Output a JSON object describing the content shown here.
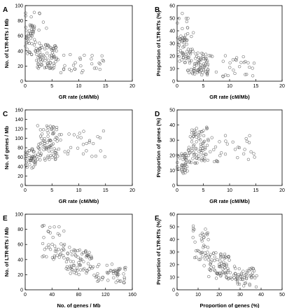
{
  "chart_data": [
    {
      "panel": "A",
      "type": "scatter",
      "xlabel": "GR rate (cM/Mb)",
      "ylabel": "No. of LTR-RTs / Mb",
      "xlim": [
        0,
        20
      ],
      "ylim": [
        0,
        100
      ],
      "xticks": [
        0,
        5,
        10,
        15,
        20
      ],
      "yticks": [
        0,
        20,
        40,
        60,
        80,
        100
      ],
      "series": [
        {
          "cloud": [
            {
              "x_range": [
                0,
                2
              ],
              "y_range": [
                35,
                75
              ],
              "n": 40,
              "y_trend": -2
            },
            {
              "x_range": [
                2,
                6
              ],
              "y_range": [
                15,
                50
              ],
              "n": 80,
              "y_trend": -3
            },
            {
              "x_range": [
                6,
                15
              ],
              "y_range": [
                10,
                35
              ],
              "n": 30,
              "y_trend": -0.8
            },
            {
              "x_range": [
                0,
                4
              ],
              "y_range": [
                65,
                92
              ],
              "n": 14,
              "y_trend": 0
            }
          ]
        }
      ]
    },
    {
      "panel": "B",
      "type": "scatter",
      "xlabel": "GR rate (cM/Mb)",
      "ylabel": "Proportion of LTR-RTs (%)",
      "xlim": [
        0,
        20
      ],
      "ylim": [
        0,
        60
      ],
      "xticks": [
        0,
        5,
        10,
        15,
        20
      ],
      "yticks": [
        0,
        10,
        20,
        30,
        40,
        50,
        60
      ],
      "series": [
        {
          "cloud": [
            {
              "x_range": [
                0,
                2
              ],
              "y_range": [
                15,
                35
              ],
              "n": 40,
              "y_trend": -1.5
            },
            {
              "x_range": [
                2,
                6
              ],
              "y_range": [
                5,
                25
              ],
              "n": 80,
              "y_trend": -1.5
            },
            {
              "x_range": [
                6,
                15
              ],
              "y_range": [
                3,
                20
              ],
              "n": 30,
              "y_trend": -0.6
            },
            {
              "x_range": [
                0,
                4
              ],
              "y_range": [
                35,
                55
              ],
              "n": 14,
              "y_trend": 0
            }
          ]
        }
      ]
    },
    {
      "panel": "C",
      "type": "scatter",
      "xlabel": "GR rate (cM/Mb)",
      "ylabel": "No. of genes / Mb",
      "xlim": [
        0,
        20
      ],
      "ylim": [
        0,
        160
      ],
      "xticks": [
        0,
        5,
        10,
        15,
        20
      ],
      "yticks": [
        0,
        20,
        40,
        60,
        80,
        100,
        120,
        140,
        160
      ],
      "series": [
        {
          "cloud": [
            {
              "x_range": [
                0,
                2
              ],
              "y_range": [
                35,
                80
              ],
              "n": 40,
              "y_trend": 5
            },
            {
              "x_range": [
                2,
                6
              ],
              "y_range": [
                50,
                130
              ],
              "n": 80,
              "y_trend": 4
            },
            {
              "x_range": [
                6,
                15
              ],
              "y_range": [
                60,
                115
              ],
              "n": 30,
              "y_trend": 0.5
            }
          ]
        }
      ]
    },
    {
      "panel": "D",
      "type": "scatter",
      "xlabel": "GR rate (cM/Mb)",
      "ylabel": "Proportion of genes (%)",
      "xlim": [
        0,
        20
      ],
      "ylim": [
        0,
        50
      ],
      "xticks": [
        0,
        5,
        10,
        15,
        20
      ],
      "yticks": [
        0,
        10,
        20,
        30,
        40,
        50
      ],
      "series": [
        {
          "cloud": [
            {
              "x_range": [
                0,
                2
              ],
              "y_range": [
                8,
                22
              ],
              "n": 40,
              "y_trend": 1.5
            },
            {
              "x_range": [
                2,
                6
              ],
              "y_range": [
                15,
                38
              ],
              "n": 80,
              "y_trend": 1.5
            },
            {
              "x_range": [
                6,
                15
              ],
              "y_range": [
                15,
                33
              ],
              "n": 30,
              "y_trend": 0
            }
          ]
        }
      ]
    },
    {
      "panel": "E",
      "type": "scatter",
      "xlabel": "No. of genes / Mb",
      "ylabel": "No. of LTR-RTs / Mb",
      "xlim": [
        0,
        160
      ],
      "ylim": [
        0,
        100
      ],
      "xticks": [
        0,
        40,
        80,
        120,
        160
      ],
      "yticks": [
        0,
        20,
        40,
        60,
        80,
        100
      ],
      "series": [
        {
          "cloud": [
            {
              "x_range": [
                25,
                60
              ],
              "y_range": [
                40,
                85
              ],
              "n": 45,
              "y_trend": -0.5
            },
            {
              "x_range": [
                60,
                100
              ],
              "y_range": [
                20,
                55
              ],
              "n": 70,
              "y_trend": -0.4
            },
            {
              "x_range": [
                100,
                150
              ],
              "y_range": [
                10,
                35
              ],
              "n": 50,
              "y_trend": -0.2
            }
          ]
        }
      ]
    },
    {
      "panel": "F",
      "type": "scatter",
      "xlabel": "Proportion of genes (%)",
      "ylabel": "Proportion of LTR-RTs (%)",
      "xlim": [
        0,
        50
      ],
      "ylim": [
        0,
        60
      ],
      "xticks": [
        0,
        10,
        20,
        30,
        40,
        50
      ],
      "yticks": [
        0,
        10,
        20,
        30,
        40,
        50,
        60
      ],
      "series": [
        {
          "cloud": [
            {
              "x_range": [
                7,
                15
              ],
              "y_range": [
                20,
                50
              ],
              "n": 40,
              "y_trend": -1.5
            },
            {
              "x_range": [
                15,
                25
              ],
              "y_range": [
                8,
                30
              ],
              "n": 70,
              "y_trend": -1.2
            },
            {
              "x_range": [
                25,
                38
              ],
              "y_range": [
                3,
                18
              ],
              "n": 55,
              "y_trend": -0.5
            }
          ]
        }
      ]
    }
  ]
}
